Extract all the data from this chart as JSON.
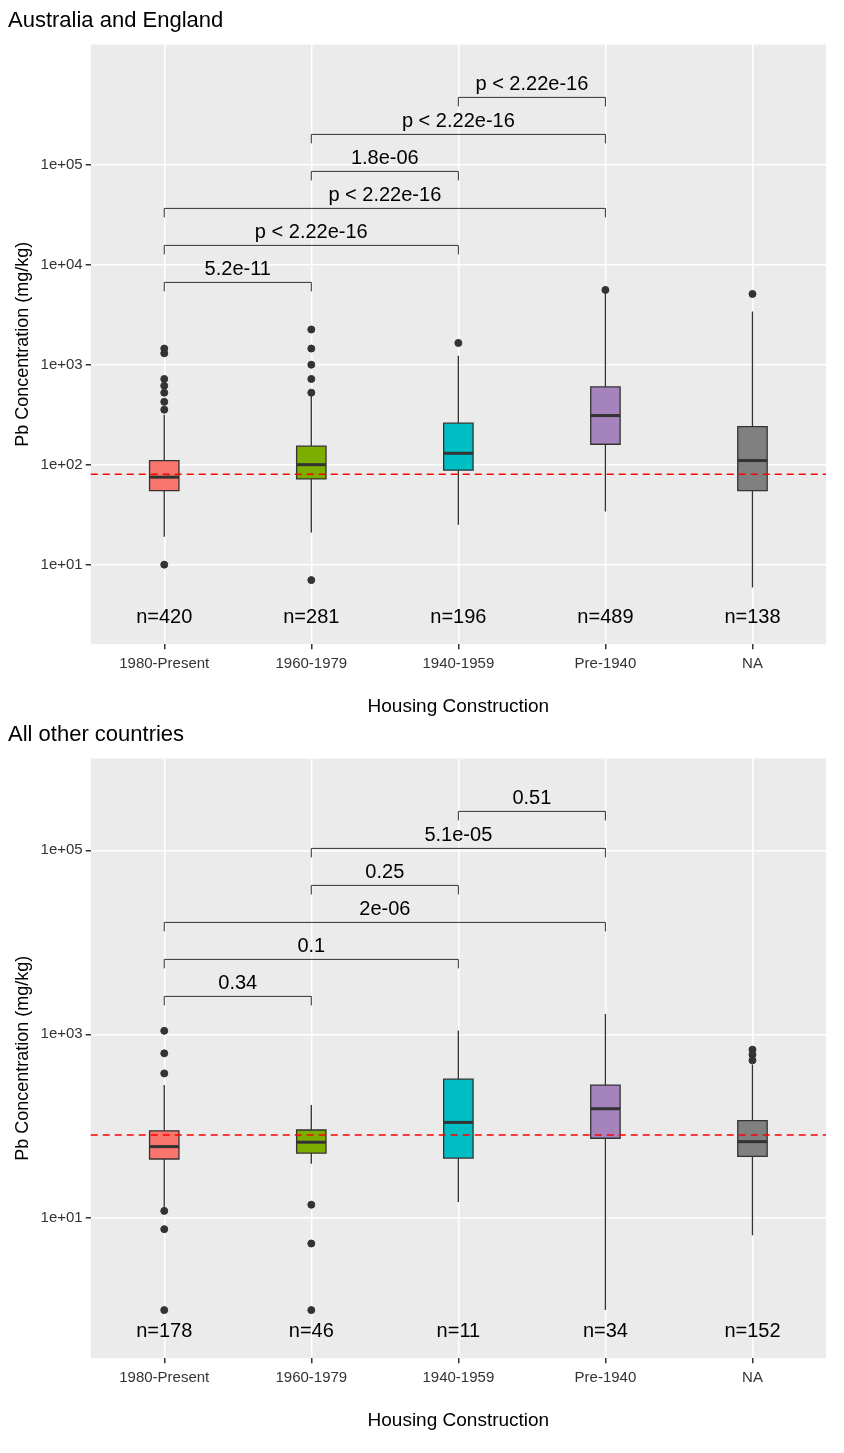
{
  "chart_data": [
    {
      "type": "box",
      "title": "Australia and England",
      "xlabel": "Housing Construction",
      "ylabel": "Pb Concentration (mg/kg)",
      "categories": [
        "1980-Present",
        "1960-1979",
        "1940-1959",
        "Pre-1940",
        "NA"
      ],
      "colors": [
        "#f8766d",
        "#7cae00",
        "#00bfc4",
        "#a583bd",
        "#808080"
      ],
      "boxes": [
        {
          "low": 19,
          "q1": 55,
          "median": 75,
          "q3": 110,
          "high": 315,
          "outliers": [
            10,
            355,
            425,
            525,
            615,
            720,
            1300,
            1450
          ]
        },
        {
          "low": 21,
          "q1": 72,
          "median": 100,
          "q3": 153,
          "high": 500,
          "outliers": [
            7,
            525,
            720,
            1000,
            1450,
            2250
          ]
        },
        {
          "low": 25,
          "q1": 88,
          "median": 130,
          "q3": 260,
          "high": 1230,
          "outliers": [
            1650
          ]
        },
        {
          "low": 34,
          "q1": 160,
          "median": 310,
          "q3": 600,
          "high": 5200,
          "outliers": [
            5600
          ]
        },
        {
          "low": 5.9,
          "q1": 55,
          "median": 110,
          "q3": 240,
          "high": 3400,
          "outliers": [
            5100
          ]
        }
      ],
      "log": "y",
      "ylim": [
        1.6,
        1600000
      ],
      "yticks": [
        {
          "value": 10,
          "label": "1e+01"
        },
        {
          "value": 100,
          "label": "1e+02"
        },
        {
          "value": 1000,
          "label": "1e+03"
        },
        {
          "value": 10000,
          "label": "1e+04"
        },
        {
          "value": 100000,
          "label": "1e+05"
        }
      ],
      "grid": true,
      "legend": false,
      "ref_lines": [
        {
          "axis": "y",
          "value": 80,
          "color": "#ff0000",
          "line_style": "dashed"
        }
      ],
      "annotations": [
        "n=420",
        "n=281",
        "n=196",
        "n=489",
        "n=138",
        "5.2e-11",
        "p < 2.22e-16",
        "p < 2.22e-16",
        "1.8e-06",
        "p < 2.22e-16",
        "p < 2.22e-16"
      ]
    },
    {
      "type": "box",
      "title": "All other countries",
      "xlabel": "Housing Construction",
      "ylabel": "Pb Concentration (mg/kg)",
      "categories": [
        "1980-Present",
        "1960-1979",
        "1940-1959",
        "Pre-1940",
        "NA"
      ],
      "colors": [
        "#f8766d",
        "#7cae00",
        "#00bfc4",
        "#a583bd",
        "#808080"
      ],
      "boxes": [
        {
          "low": 13,
          "q1": 44,
          "median": 60,
          "q3": 89,
          "high": 280,
          "outliers": [
            1.0,
            7.6,
            12,
            375,
            620,
            1090
          ]
        },
        {
          "low": 39,
          "q1": 51,
          "median": 67,
          "q3": 91,
          "high": 170,
          "outliers": [
            1.0,
            5.3,
            14
          ]
        },
        {
          "low": 15,
          "q1": 45,
          "median": 110,
          "q3": 325,
          "high": 1100
        },
        {
          "low": 1.0,
          "q1": 74,
          "median": 155,
          "q3": 280,
          "high": 1660
        },
        {
          "low": 6.5,
          "q1": 47,
          "median": 68,
          "q3": 115,
          "high": 470,
          "outliers": [
            520,
            600,
            680
          ]
        }
      ],
      "log": "y",
      "ylim": [
        0.3,
        1000000
      ],
      "yticks": [
        {
          "value": 10,
          "label": "1e+01"
        },
        {
          "value": 1000,
          "label": "1e+03"
        },
        {
          "value": 100000,
          "label": "1e+05"
        }
      ],
      "grid": true,
      "legend": false,
      "ref_lines": [
        {
          "axis": "y",
          "value": 80,
          "color": "#ff0000",
          "line_style": "dashed"
        }
      ],
      "annotations": [
        "n=178",
        "n=46",
        "n=11",
        "n=34",
        "n=152",
        "0.34",
        "0.1",
        "2e-06",
        "0.25",
        "5.1e-05",
        "0.51"
      ]
    }
  ]
}
